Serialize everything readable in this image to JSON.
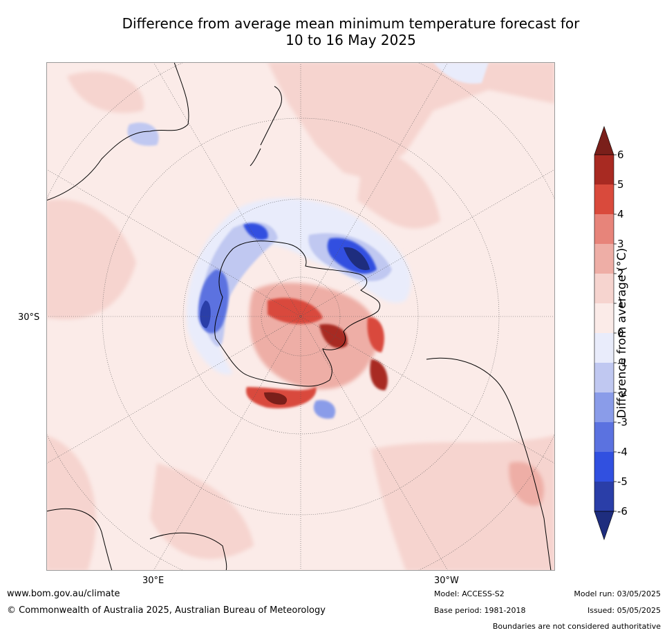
{
  "title": {
    "line1": "Difference from average mean minimum temperature forecast for",
    "line2": "10 to 16 May 2025"
  },
  "map": {
    "lat_label": "30°S",
    "lon_label_east": "30°E",
    "lon_label_west": "30°W"
  },
  "colorbar": {
    "label": "Difference from average (°C)",
    "ticks": [
      "6",
      "5",
      "4",
      "3",
      "2",
      "1",
      "0",
      "-1",
      "-2",
      "-3",
      "-4",
      "-5",
      "-6"
    ],
    "colors": [
      "#a82a22",
      "#d94a3c",
      "#e7847a",
      "#eeaea6",
      "#f6d4cf",
      "#fbebe8",
      "#e9ecfb",
      "#c0c8f1",
      "#8a9ce9",
      "#5b72e0",
      "#3150e0",
      "#2a3ea8"
    ],
    "over_color": "#7a1f1a",
    "under_color": "#1e2d7e"
  },
  "footer": {
    "url": "www.bom.gov.au/climate",
    "copyright": "© Commonwealth of Australia 2025, Australian Bureau of Meteorology",
    "model": "Model: ACCESS-S2",
    "base_period": "Base period: 1981-2018",
    "model_run": "Model run: 03/05/2025",
    "issued": "Issued: 05/05/2025",
    "disclaimer": "Boundaries are not considered authoritative"
  }
}
